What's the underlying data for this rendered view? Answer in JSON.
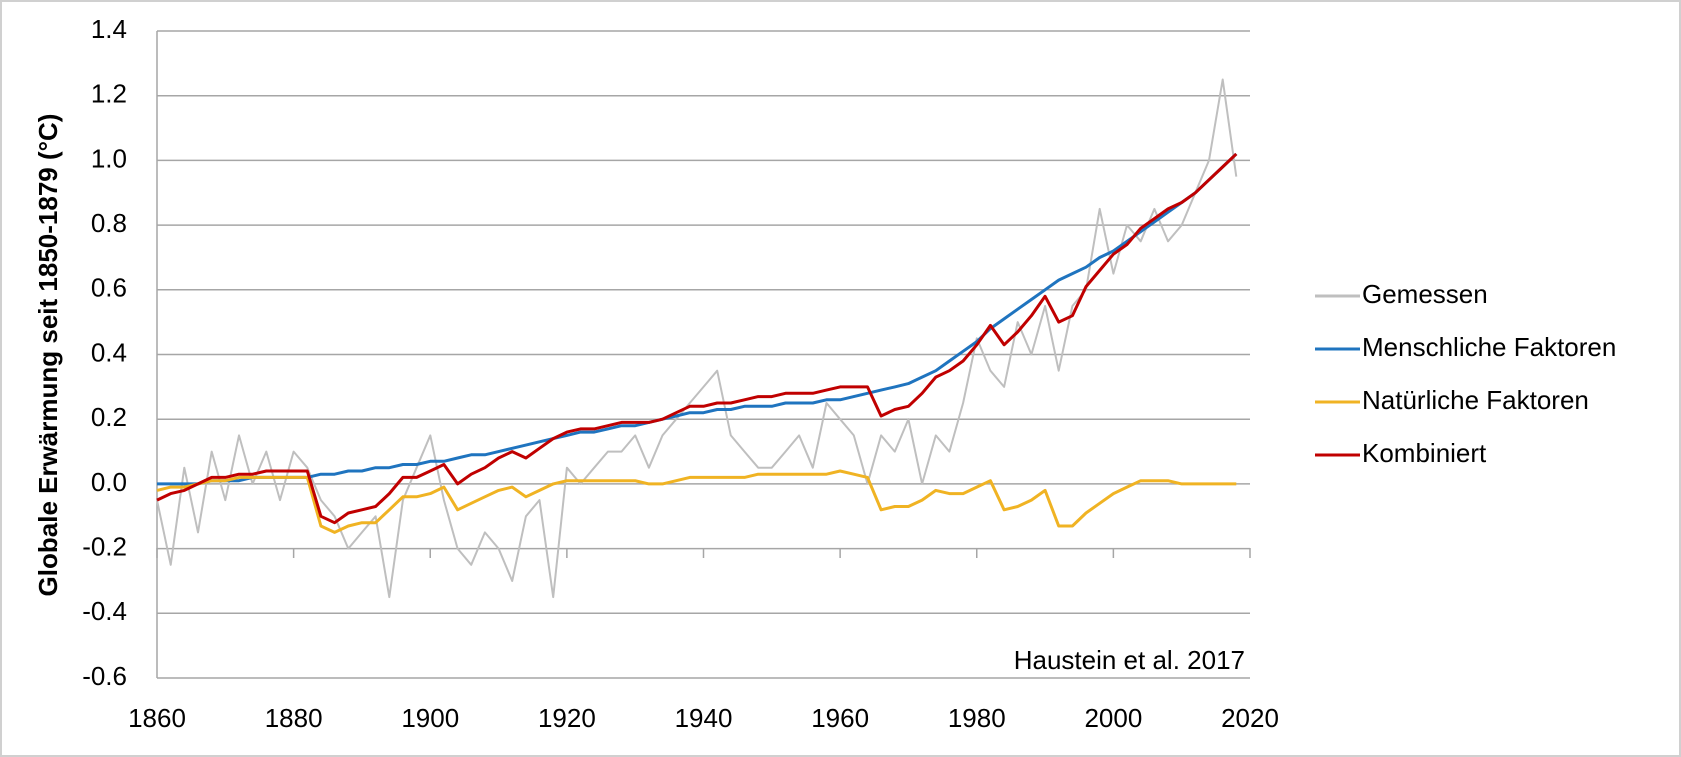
{
  "chart_data": {
    "type": "line",
    "ylabel": "Globale Erwärmung seit 1850-1879 (°C)",
    "annotation": "Haustein et al. 2017",
    "x": [
      1860,
      1862,
      1864,
      1866,
      1868,
      1870,
      1872,
      1874,
      1876,
      1878,
      1880,
      1882,
      1884,
      1886,
      1888,
      1890,
      1892,
      1894,
      1896,
      1898,
      1900,
      1902,
      1904,
      1906,
      1908,
      1910,
      1912,
      1914,
      1916,
      1918,
      1920,
      1922,
      1924,
      1926,
      1928,
      1930,
      1932,
      1934,
      1936,
      1938,
      1940,
      1942,
      1944,
      1946,
      1948,
      1950,
      1952,
      1954,
      1956,
      1958,
      1960,
      1962,
      1964,
      1966,
      1968,
      1970,
      1972,
      1974,
      1976,
      1978,
      1980,
      1982,
      1984,
      1986,
      1988,
      1990,
      1992,
      1994,
      1996,
      1998,
      2000,
      2002,
      2004,
      2006,
      2008,
      2010,
      2012,
      2014,
      2016,
      2018
    ],
    "series": [
      {
        "name": "Gemessen",
        "color": "#bfbfbf",
        "values": [
          -0.05,
          -0.25,
          0.05,
          -0.15,
          0.1,
          -0.05,
          0.15,
          0.0,
          0.1,
          -0.05,
          0.1,
          0.05,
          -0.05,
          -0.1,
          -0.2,
          -0.15,
          -0.1,
          -0.35,
          -0.05,
          0.05,
          0.15,
          -0.05,
          -0.2,
          -0.25,
          -0.15,
          -0.2,
          -0.3,
          -0.1,
          -0.05,
          -0.35,
          0.05,
          0.0,
          0.05,
          0.1,
          0.1,
          0.15,
          0.05,
          0.15,
          0.2,
          0.25,
          0.3,
          0.35,
          0.15,
          0.1,
          0.05,
          0.05,
          0.1,
          0.15,
          0.05,
          0.25,
          0.2,
          0.15,
          0.0,
          0.15,
          0.1,
          0.2,
          0.0,
          0.15,
          0.1,
          0.25,
          0.45,
          0.35,
          0.3,
          0.5,
          0.4,
          0.55,
          0.35,
          0.55,
          0.6,
          0.85,
          0.65,
          0.8,
          0.75,
          0.85,
          0.75,
          0.8,
          0.9,
          1.0,
          1.25,
          0.95
        ]
      },
      {
        "name": "Menschliche Faktoren",
        "color": "#1f74bf",
        "values": [
          0.0,
          0.0,
          0.0,
          0.0,
          0.01,
          0.01,
          0.01,
          0.02,
          0.02,
          0.02,
          0.02,
          0.02,
          0.03,
          0.03,
          0.04,
          0.04,
          0.05,
          0.05,
          0.06,
          0.06,
          0.07,
          0.07,
          0.08,
          0.09,
          0.09,
          0.1,
          0.11,
          0.12,
          0.13,
          0.14,
          0.15,
          0.16,
          0.16,
          0.17,
          0.18,
          0.18,
          0.19,
          0.2,
          0.21,
          0.22,
          0.22,
          0.23,
          0.23,
          0.24,
          0.24,
          0.24,
          0.25,
          0.25,
          0.25,
          0.26,
          0.26,
          0.27,
          0.28,
          0.29,
          0.3,
          0.31,
          0.33,
          0.35,
          0.38,
          0.41,
          0.44,
          0.48,
          0.51,
          0.54,
          0.57,
          0.6,
          0.63,
          0.65,
          0.67,
          0.7,
          0.72,
          0.75,
          0.78,
          0.81,
          0.84,
          0.87,
          0.9,
          0.94,
          0.98,
          1.02
        ]
      },
      {
        "name": "Natürliche Faktoren",
        "color": "#f0b323",
        "values": [
          -0.02,
          -0.01,
          -0.01,
          0.0,
          0.01,
          0.01,
          0.02,
          0.02,
          0.02,
          0.02,
          0.02,
          0.02,
          -0.13,
          -0.15,
          -0.13,
          -0.12,
          -0.12,
          -0.08,
          -0.04,
          -0.04,
          -0.03,
          -0.01,
          -0.08,
          -0.06,
          -0.04,
          -0.02,
          -0.01,
          -0.04,
          -0.02,
          0.0,
          0.01,
          0.01,
          0.01,
          0.01,
          0.01,
          0.01,
          0.0,
          0.0,
          0.01,
          0.02,
          0.02,
          0.02,
          0.02,
          0.02,
          0.03,
          0.03,
          0.03,
          0.03,
          0.03,
          0.03,
          0.04,
          0.03,
          0.02,
          -0.08,
          -0.07,
          -0.07,
          -0.05,
          -0.02,
          -0.03,
          -0.03,
          -0.01,
          0.01,
          -0.08,
          -0.07,
          -0.05,
          -0.02,
          -0.13,
          -0.13,
          -0.09,
          -0.06,
          -0.03,
          -0.01,
          0.01,
          0.01,
          0.01,
          0.0,
          0.0,
          0.0,
          0.0,
          0.0
        ]
      },
      {
        "name": "Kombiniert",
        "color": "#c00000",
        "values": [
          -0.05,
          -0.03,
          -0.02,
          0.0,
          0.02,
          0.02,
          0.03,
          0.03,
          0.04,
          0.04,
          0.04,
          0.04,
          -0.1,
          -0.12,
          -0.09,
          -0.08,
          -0.07,
          -0.03,
          0.02,
          0.02,
          0.04,
          0.06,
          0.0,
          0.03,
          0.05,
          0.08,
          0.1,
          0.08,
          0.11,
          0.14,
          0.16,
          0.17,
          0.17,
          0.18,
          0.19,
          0.19,
          0.19,
          0.2,
          0.22,
          0.24,
          0.24,
          0.25,
          0.25,
          0.26,
          0.27,
          0.27,
          0.28,
          0.28,
          0.28,
          0.29,
          0.3,
          0.3,
          0.3,
          0.21,
          0.23,
          0.24,
          0.28,
          0.33,
          0.35,
          0.38,
          0.43,
          0.49,
          0.43,
          0.47,
          0.52,
          0.58,
          0.5,
          0.52,
          0.61,
          0.66,
          0.71,
          0.74,
          0.79,
          0.82,
          0.85,
          0.87,
          0.9,
          0.94,
          0.98,
          1.02
        ]
      }
    ],
    "xlim": [
      1860,
      2020
    ],
    "xticks": [
      1860,
      1880,
      1900,
      1920,
      1940,
      1960,
      1980,
      2000,
      2020
    ],
    "ylim": [
      -0.6,
      1.4
    ],
    "yticks": [
      {
        "value": -0.6,
        "label": "-0.6"
      },
      {
        "value": -0.4,
        "label": "-0.4"
      },
      {
        "value": -0.2,
        "label": "-0.2"
      },
      {
        "value": 0,
        "label": "0.0"
      },
      {
        "value": 0.2,
        "label": "0.2"
      },
      {
        "value": 0.4,
        "label": "0.4"
      },
      {
        "value": 0.6,
        "label": "0.6"
      },
      {
        "value": 0.8,
        "label": "0.8"
      },
      {
        "value": 1,
        "label": "1.0"
      },
      {
        "value": 1.2,
        "label": "1.2"
      },
      {
        "value": 1.4,
        "label": "1.4"
      }
    ],
    "grid": true,
    "legend": "right"
  }
}
